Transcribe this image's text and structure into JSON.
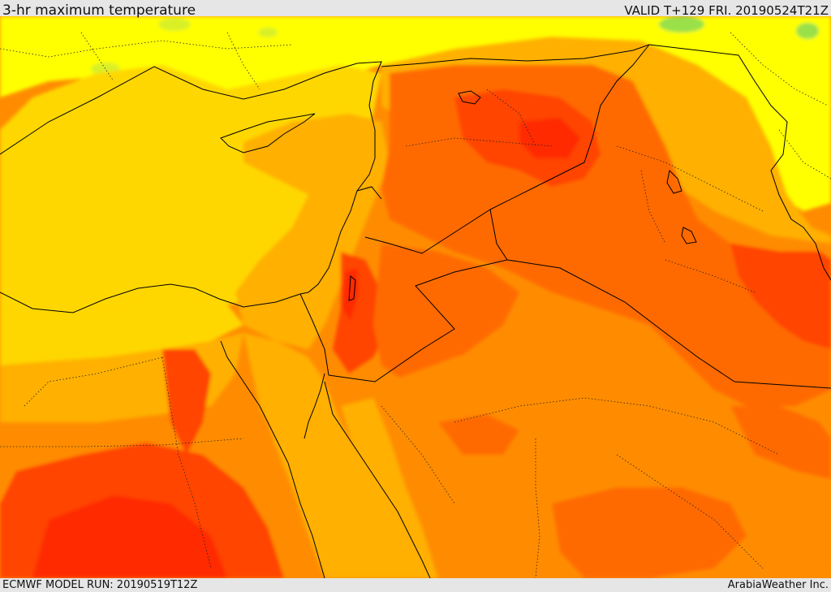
{
  "header": {
    "title": "3-hr maximum temperature",
    "valid": "VALID T+129 FRI. 20190524T21Z"
  },
  "footer": {
    "model_run": "ECMWF MODEL RUN: 20190519T12Z",
    "credit": "ArabiaWeather Inc."
  },
  "map": {
    "field": "3-hr maximum temperature",
    "palette": {
      "light_green": "#99e04a",
      "yellow_green": "#d9f026",
      "yellow": "#ffff00",
      "gold": "#ffd700",
      "amber": "#ffb000",
      "orange": "#ff8c00",
      "dark_orange": "#ff6a00",
      "red_orange": "#ff4500",
      "red": "#ff2a00"
    },
    "boundary_color": "#000000"
  }
}
